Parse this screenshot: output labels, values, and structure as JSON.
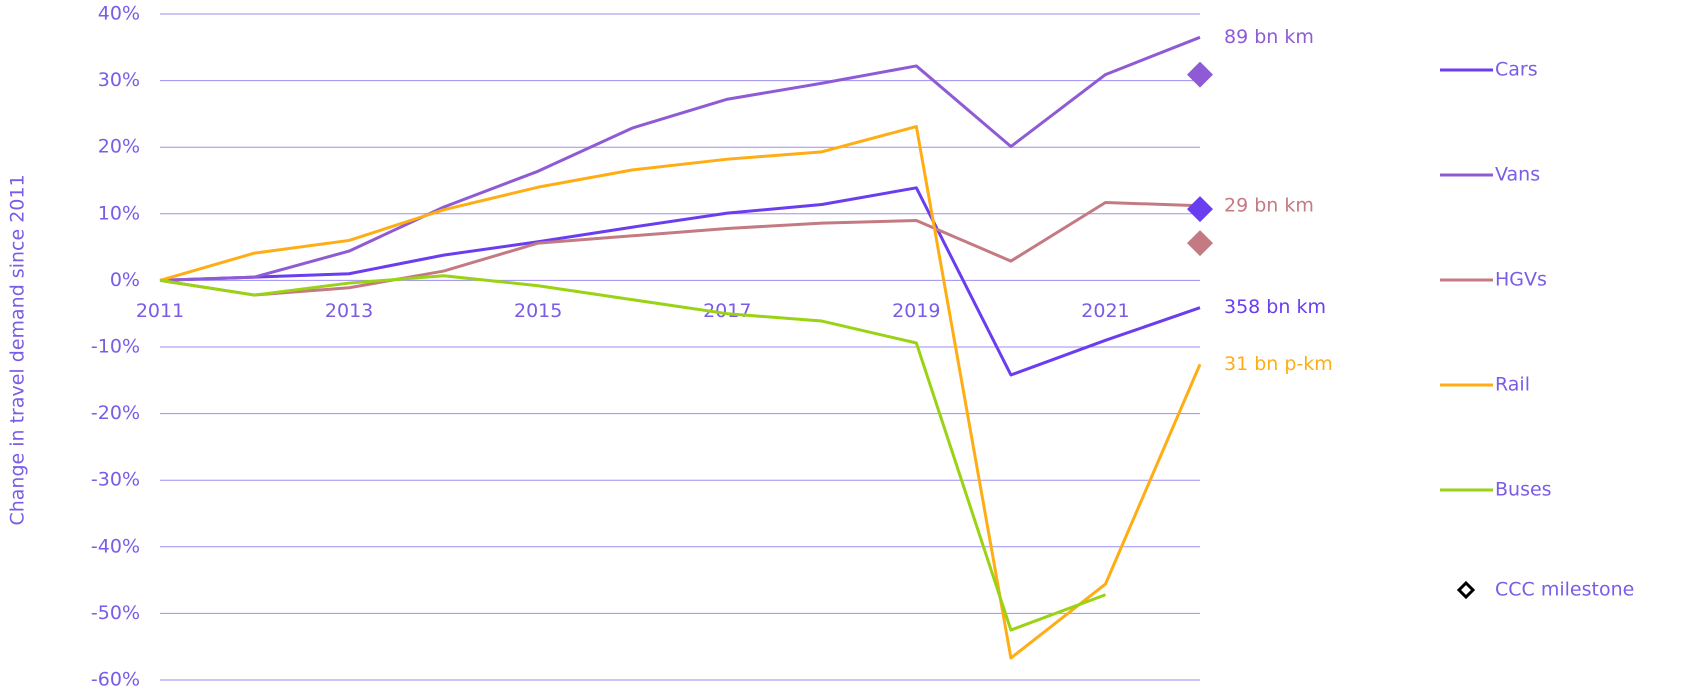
{
  "chart_data": {
    "type": "line",
    "y_label": "Change in travel demand since 2011",
    "x": [
      2011,
      2012,
      2013,
      2014,
      2015,
      2016,
      2017,
      2018,
      2019,
      2020,
      2021,
      2022
    ],
    "xlim": [
      2011,
      2022
    ],
    "xticks": [
      2011,
      2013,
      2015,
      2017,
      2019,
      2021
    ],
    "ylim": [
      -60,
      40
    ],
    "yticks": [
      {
        "value": -60,
        "label": "-60%"
      },
      {
        "value": -50,
        "label": "-50%"
      },
      {
        "value": -40,
        "label": "-40%"
      },
      {
        "value": -30,
        "label": "-30%"
      },
      {
        "value": -20,
        "label": "-20%"
      },
      {
        "value": -10,
        "label": "-10%"
      },
      {
        "value": 0,
        "label": "0%"
      },
      {
        "value": 10,
        "label": "10%"
      },
      {
        "value": 20,
        "label": "20%"
      },
      {
        "value": 30,
        "label": "30%"
      },
      {
        "value": 40,
        "label": "40%"
      }
    ],
    "grid": true,
    "legend": "right",
    "series": [
      {
        "name": "Cars",
        "color": "#6a3df0",
        "end_label": "358 bn km",
        "values": [
          0,
          0.5,
          1,
          3.8,
          5.8,
          8,
          10.1,
          11.4,
          13.9,
          -14.2,
          -9,
          -4.1
        ]
      },
      {
        "name": "Vans",
        "color": "#8f5bd4",
        "end_label": "89 bn km",
        "values": [
          0,
          0.5,
          4.4,
          11,
          16.4,
          22.9,
          27.2,
          29.6,
          32.2,
          20.1,
          30.9,
          36.5
        ]
      },
      {
        "name": "HGVs",
        "color": "#c47a82",
        "end_label": "29 bn km",
        "values": [
          0,
          -2.2,
          -1.1,
          1.4,
          5.6,
          6.7,
          7.8,
          8.6,
          9.0,
          2.9,
          11.7,
          11.2
        ]
      },
      {
        "name": "Rail",
        "color": "#ffad14",
        "end_label": "31 bn p-km",
        "values": [
          0,
          4.1,
          6,
          10.6,
          14,
          16.6,
          18.2,
          19.3,
          23.1,
          -56.7,
          -45.6,
          -12.6
        ]
      },
      {
        "name": "Buses",
        "color": "#99d313",
        "values": [
          0,
          -2.2,
          -0.4,
          0.7,
          -0.8,
          -2.9,
          -5.0,
          -6.1,
          -9.4,
          -52.5,
          -47.2,
          null
        ]
      }
    ],
    "milestones": {
      "name": "CCC milestone",
      "x": [
        2022,
        2022,
        2022
      ],
      "values": [
        30.9,
        10.7,
        5.6
      ],
      "colors": [
        "#8f5bd4",
        "#6a3df0",
        "#c47a82"
      ]
    }
  }
}
